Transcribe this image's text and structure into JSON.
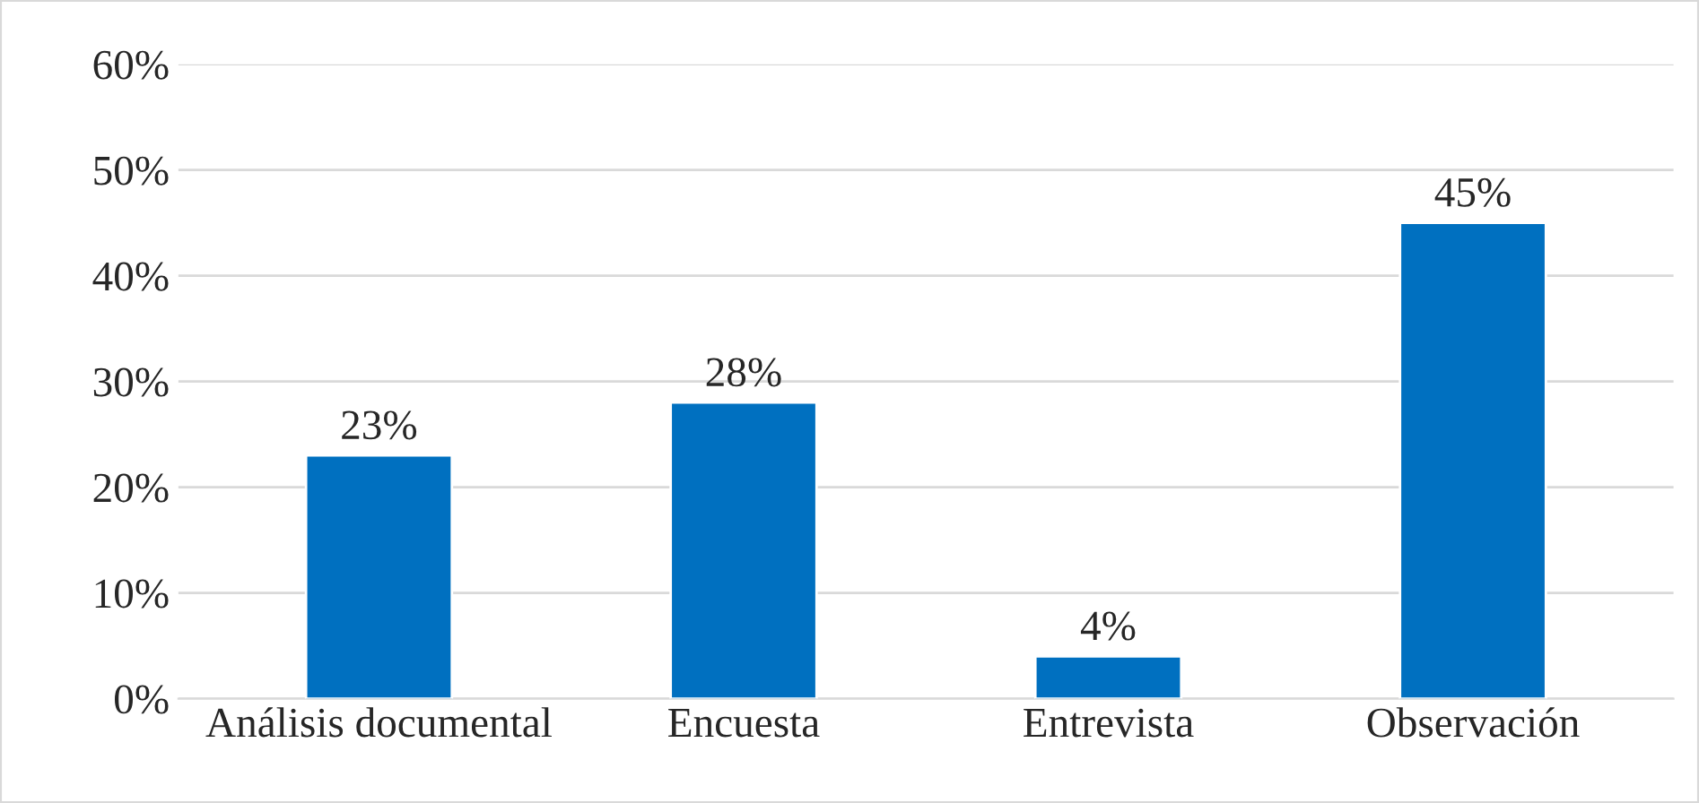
{
  "chart_data": {
    "type": "bar",
    "categories": [
      "Análisis documental",
      "Encuesta",
      "Entrevista",
      "Observación"
    ],
    "values": [
      23,
      28,
      4,
      45
    ],
    "color": "#0070c0",
    "ylim": [
      0,
      60
    ],
    "yticks": [
      {
        "value": 0,
        "label": "0%"
      },
      {
        "value": 10,
        "label": "10%"
      },
      {
        "value": 20,
        "label": "20%"
      },
      {
        "value": 30,
        "label": "30%"
      },
      {
        "value": 40,
        "label": "40%"
      },
      {
        "value": 50,
        "label": "50%"
      },
      {
        "value": 60,
        "label": "60%"
      }
    ],
    "value_labels": [
      "23%",
      "28%",
      "4%",
      "45%"
    ],
    "grid": "y",
    "legend": false
  }
}
